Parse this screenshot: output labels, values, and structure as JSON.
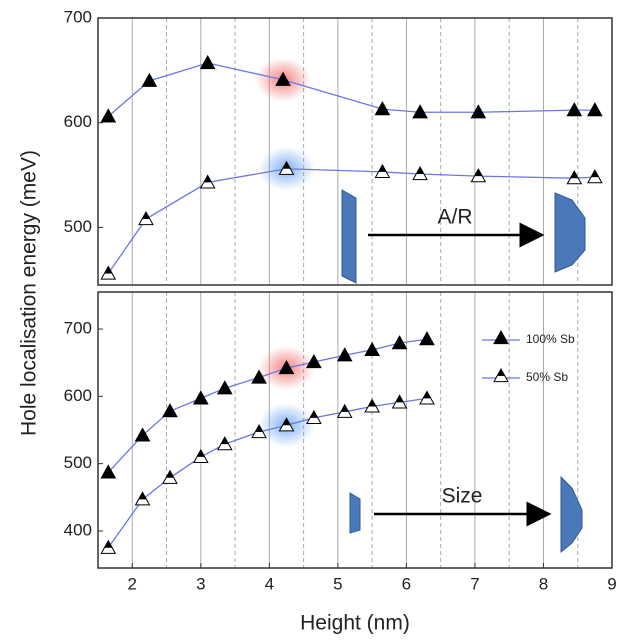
{
  "chart_data": [
    {
      "type": "line",
      "ylabel": "Hole localisation energy (meV)",
      "xlim": [
        1.5,
        9
      ],
      "xticks": [
        2,
        3,
        4,
        5,
        6,
        7,
        8,
        9
      ],
      "x_minor_ticks": [
        2.5,
        3.5,
        4.5,
        5.5,
        6.5,
        7.5,
        8.5
      ],
      "ylim": [
        445,
        700
      ],
      "yticks": [
        500,
        600,
        700
      ],
      "grid": true,
      "annotations": [
        "A/R"
      ],
      "series": [
        {
          "name": "100% Sb",
          "color": "#6a78e6",
          "marker": "filled-triangle",
          "x": [
            1.65,
            2.25,
            3.1,
            4.2,
            5.65,
            6.2,
            7.05,
            8.45,
            8.75
          ],
          "values": [
            606,
            640,
            657,
            641,
            613,
            610,
            610,
            612,
            612
          ]
        },
        {
          "name": "50% Sb",
          "color": "#6a78e6",
          "marker": "half-filled-triangle",
          "x": [
            1.65,
            2.2,
            3.1,
            4.25,
            5.65,
            6.2,
            7.05,
            8.45,
            8.75
          ],
          "values": [
            456,
            508,
            543,
            556,
            553,
            551,
            549,
            547,
            548
          ]
        }
      ]
    },
    {
      "type": "line",
      "xlabel": "Height (nm)",
      "xlim": [
        1.5,
        9
      ],
      "xticks": [
        2,
        3,
        4,
        5,
        6,
        7,
        8,
        9
      ],
      "x_minor_ticks": [
        2.5,
        3.5,
        4.5,
        5.5,
        6.5,
        7.5,
        8.5
      ],
      "ylim": [
        345,
        755
      ],
      "yticks": [
        400,
        500,
        600,
        700
      ],
      "grid": true,
      "legend": "upper right",
      "annotations": [
        "Size"
      ],
      "series": [
        {
          "name": "100% Sb",
          "color": "#6a78e6",
          "marker": "filled-triangle",
          "x": [
            1.65,
            2.15,
            2.55,
            3.0,
            3.35,
            3.85,
            4.25,
            4.65,
            5.1,
            5.5,
            5.9,
            6.3
          ],
          "values": [
            487,
            542,
            578,
            597,
            612,
            628,
            642,
            651,
            661,
            669,
            679,
            685
          ]
        },
        {
          "name": "50% Sb",
          "color": "#6a78e6",
          "marker": "half-filled-triangle",
          "x": [
            1.65,
            2.15,
            2.55,
            3.0,
            3.35,
            3.85,
            4.25,
            4.65,
            5.1,
            5.5,
            5.9,
            6.3
          ],
          "values": [
            375,
            447,
            479,
            510,
            529,
            547,
            557,
            568,
            577,
            585,
            591,
            597
          ]
        }
      ]
    }
  ]
}
